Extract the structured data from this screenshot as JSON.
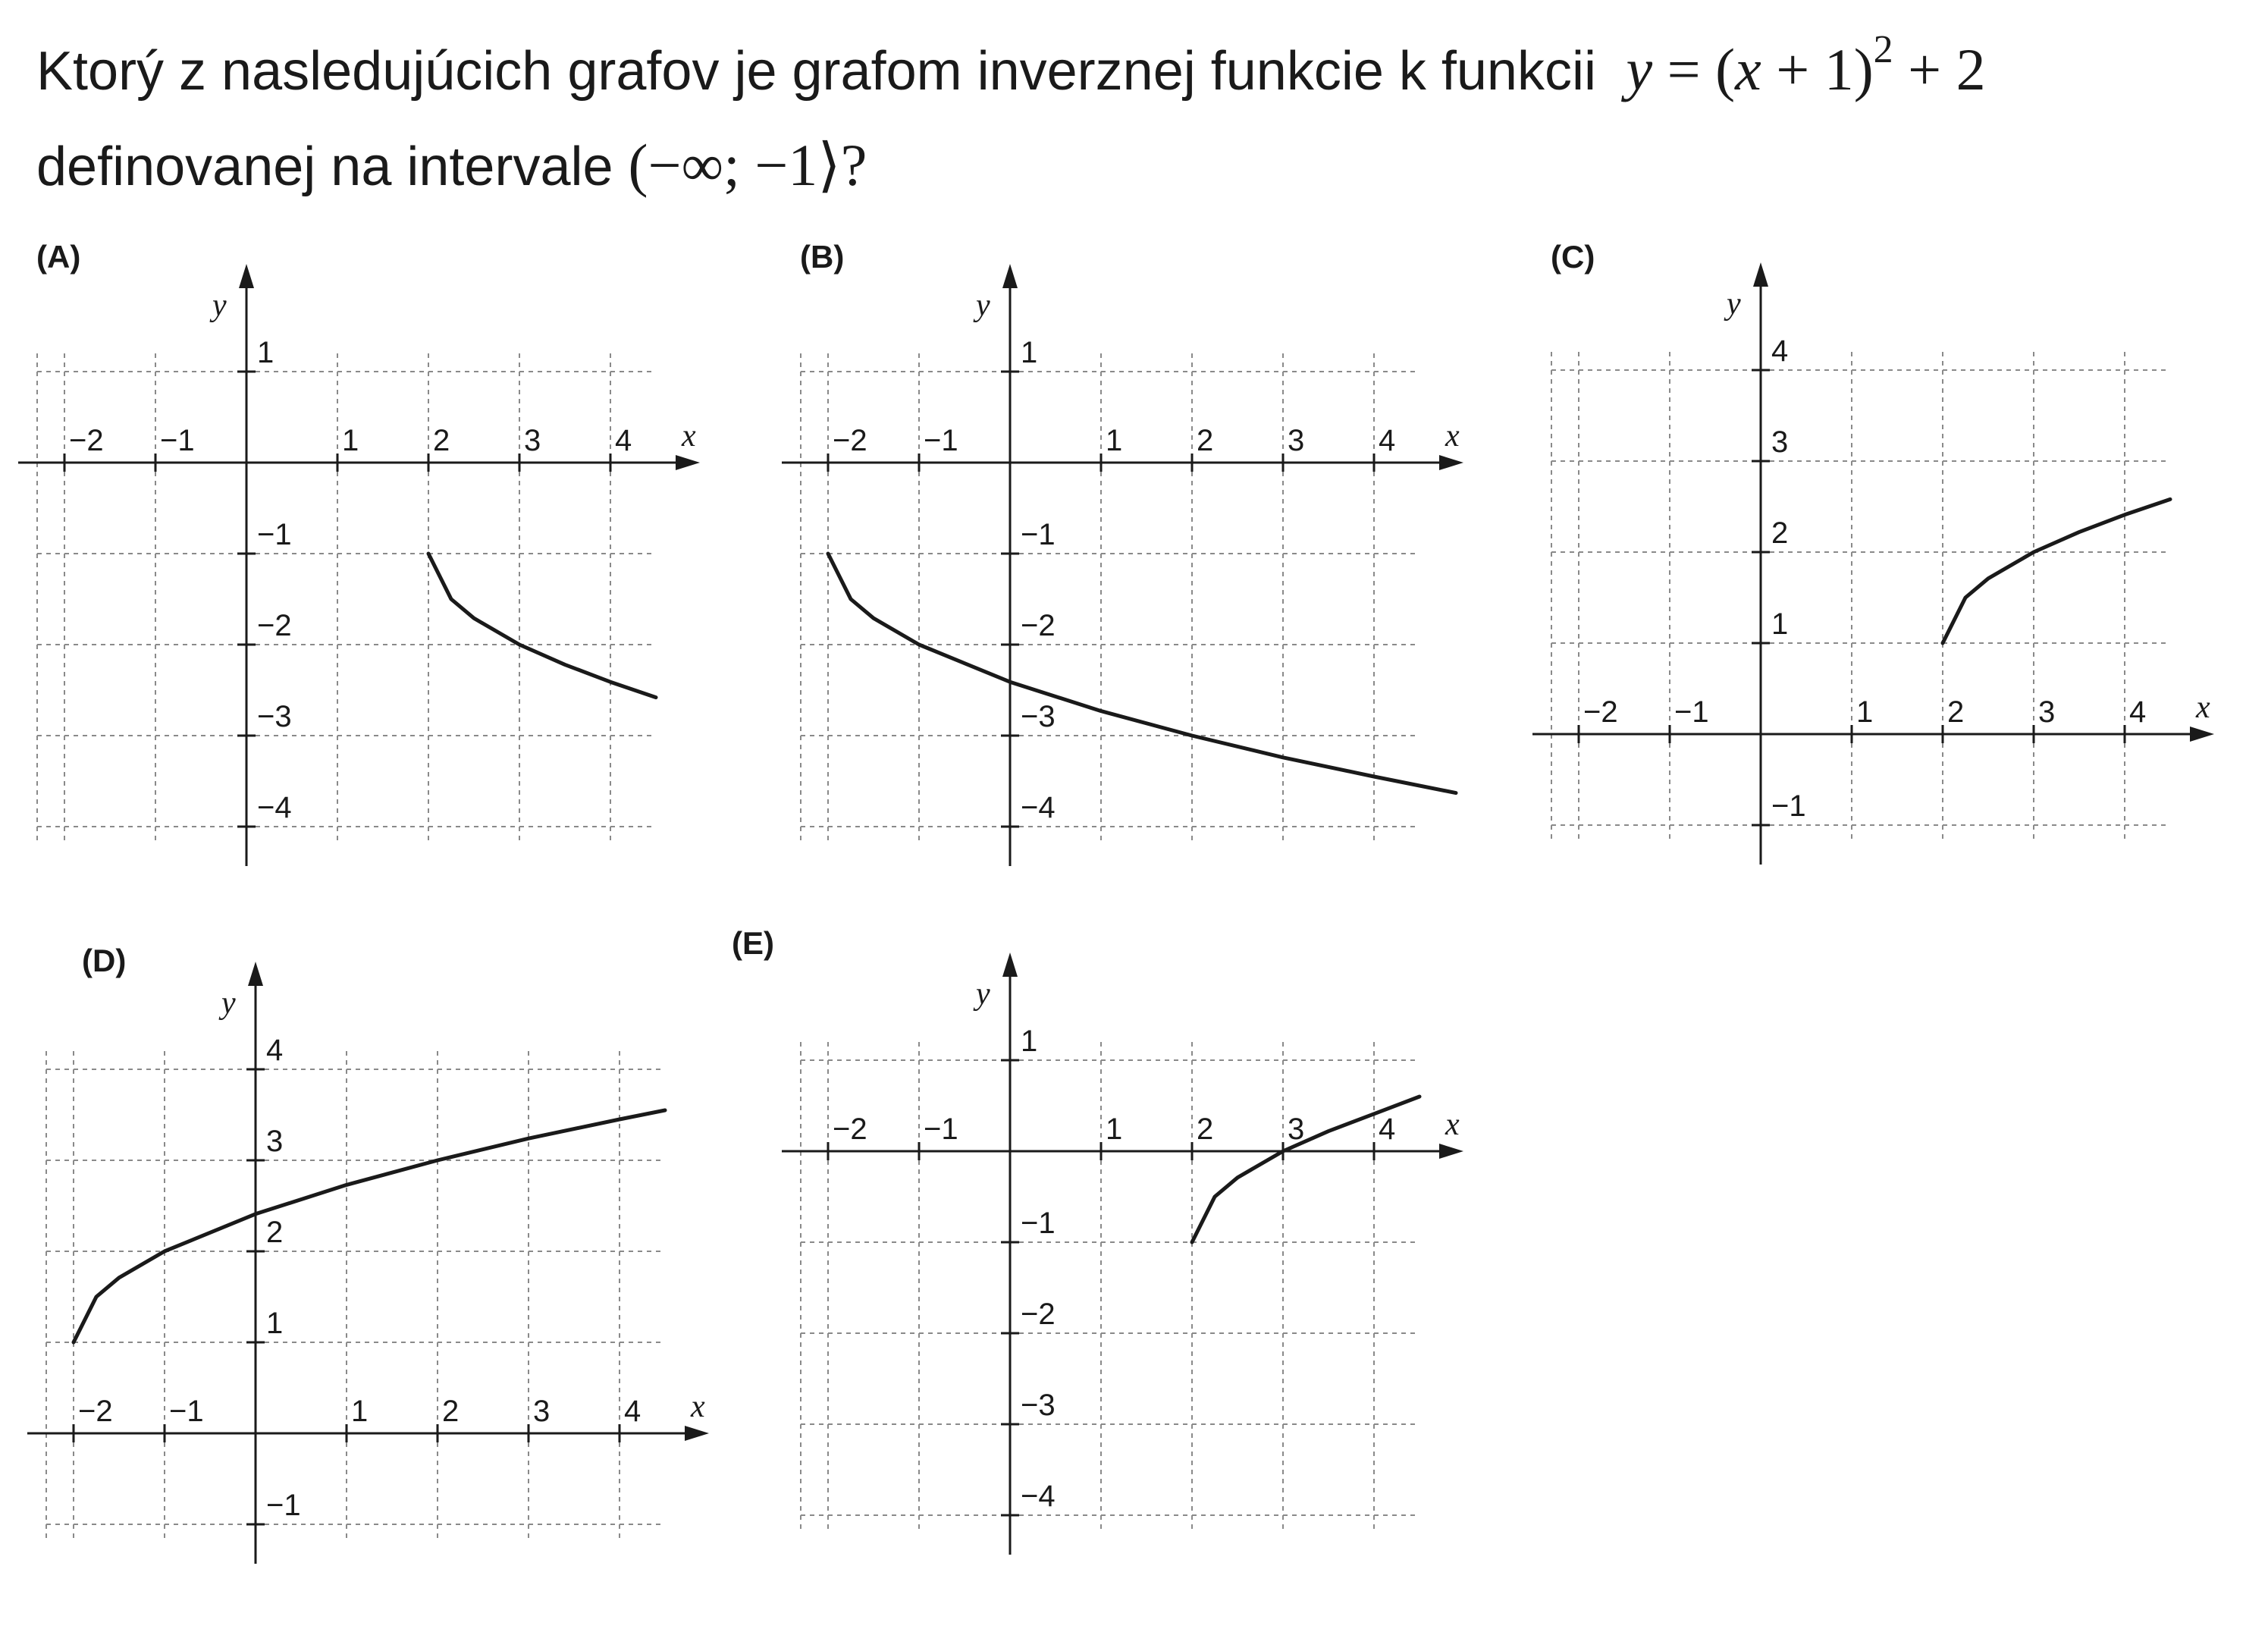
{
  "question": {
    "line1_text": "Ktorý z nasledujúcich grafov je grafom inverznej funkcie k funkcii",
    "func_y": "y",
    "func_eq": " = (",
    "func_x": "x",
    "func_plus1": " + 1)",
    "func_exp": "2",
    "func_tail": " + 2",
    "line2_text": "definovanej na intervale ",
    "interval": "(−∞; −1⟩?"
  },
  "chart_data": [
    {
      "type": "line",
      "panel_label": "(A)",
      "xlabel": "x",
      "ylabel": "y",
      "xlim": [
        -2.3,
        4.5
      ],
      "ylim": [
        -4.2,
        1.2
      ],
      "xticks": [
        "−2",
        "−1",
        "1",
        "2",
        "3",
        "4"
      ],
      "xtick_values": [
        -2,
        -1,
        1,
        2,
        3,
        4
      ],
      "yticks": [
        "1",
        "−1",
        "−2",
        "−3",
        "−4"
      ],
      "ytick_values": [
        1,
        -1,
        -2,
        -3,
        -4
      ],
      "grid": true,
      "series": [
        {
          "x": [
            2,
            2.25,
            2.5,
            3,
            3.5,
            4,
            4.5
          ],
          "y": [
            -1,
            -1.5,
            -1.71,
            -2,
            -2.22,
            -2.41,
            -2.58
          ]
        }
      ]
    },
    {
      "type": "line",
      "panel_label": "(B)",
      "xlabel": "x",
      "ylabel": "y",
      "xlim": [
        -2.3,
        4.5
      ],
      "ylim": [
        -4.2,
        1.2
      ],
      "xticks": [
        "−2",
        "−1",
        "1",
        "2",
        "3",
        "4"
      ],
      "xtick_values": [
        -2,
        -1,
        1,
        2,
        3,
        4
      ],
      "yticks": [
        "1",
        "−1",
        "−2",
        "−3",
        "−4"
      ],
      "ytick_values": [
        1,
        -1,
        -2,
        -3,
        -4
      ],
      "grid": true,
      "series": [
        {
          "x": [
            -2,
            -1.75,
            -1.5,
            -1,
            0,
            1,
            2,
            3,
            4,
            4.9
          ],
          "y": [
            -1,
            -1.5,
            -1.71,
            -2,
            -2.41,
            -2.73,
            -3,
            -3.24,
            -3.45,
            -3.63
          ]
        }
      ]
    },
    {
      "type": "line",
      "panel_label": "(C)",
      "xlabel": "x",
      "ylabel": "y",
      "xlim": [
        -2.3,
        4.5
      ],
      "ylim": [
        -1.2,
        4.2
      ],
      "xticks": [
        "−2",
        "−1",
        "1",
        "2",
        "3",
        "4"
      ],
      "xtick_values": [
        -2,
        -1,
        1,
        2,
        3,
        4
      ],
      "yticks": [
        "4",
        "3",
        "2",
        "1",
        "−1"
      ],
      "ytick_values": [
        4,
        3,
        2,
        1,
        -1
      ],
      "grid": true,
      "series": [
        {
          "x": [
            2,
            2.25,
            2.5,
            3,
            3.5,
            4,
            4.5
          ],
          "y": [
            1,
            1.5,
            1.71,
            2,
            2.22,
            2.41,
            2.58
          ]
        }
      ]
    },
    {
      "type": "line",
      "panel_label": "(D)",
      "xlabel": "x",
      "ylabel": "y",
      "xlim": [
        -2.3,
        4.5
      ],
      "ylim": [
        -1.2,
        4.2
      ],
      "xticks": [
        "−2",
        "−1",
        "1",
        "2",
        "3",
        "4"
      ],
      "xtick_values": [
        -2,
        -1,
        1,
        2,
        3,
        4
      ],
      "yticks": [
        "4",
        "3",
        "2",
        "1",
        "−1"
      ],
      "ytick_values": [
        4,
        3,
        2,
        1,
        -1
      ],
      "grid": true,
      "series": [
        {
          "x": [
            -2,
            -1.75,
            -1.5,
            -1,
            0,
            1,
            2,
            3,
            4,
            4.5
          ],
          "y": [
            1,
            1.5,
            1.71,
            2,
            2.41,
            2.73,
            3,
            3.24,
            3.45,
            3.55
          ]
        }
      ]
    },
    {
      "type": "line",
      "panel_label": "(E)",
      "xlabel": "x",
      "ylabel": "y",
      "xlim": [
        -2.3,
        4.5
      ],
      "ylim": [
        -4.2,
        1.2
      ],
      "xticks": [
        "−2",
        "−1",
        "1",
        "2",
        "3",
        "4"
      ],
      "xtick_values": [
        -2,
        -1,
        1,
        2,
        3,
        4
      ],
      "yticks": [
        "1",
        "−1",
        "−2",
        "−3",
        "−4"
      ],
      "ytick_values": [
        1,
        -1,
        -2,
        -3,
        -4
      ],
      "grid": true,
      "series": [
        {
          "x": [
            2,
            2.25,
            2.5,
            3,
            3.5,
            4,
            4.5
          ],
          "y": [
            -1,
            -0.5,
            -0.29,
            0,
            0.22,
            0.41,
            0.6
          ]
        }
      ]
    }
  ]
}
